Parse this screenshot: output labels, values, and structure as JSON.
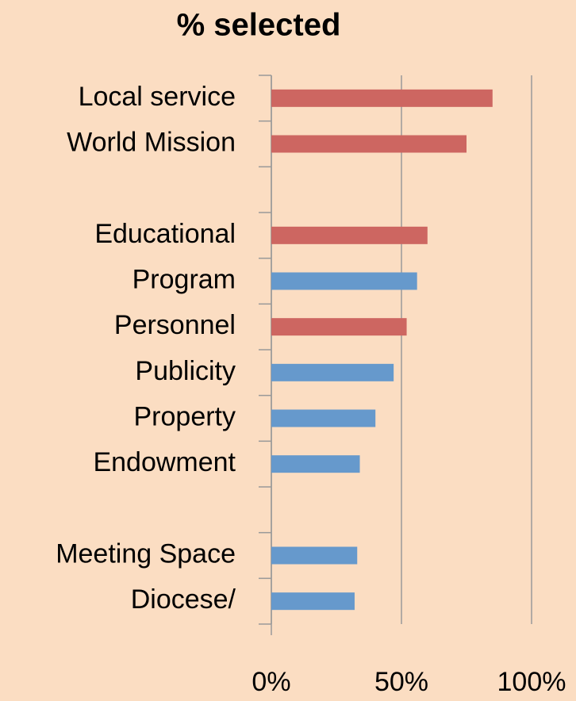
{
  "chart_data": {
    "type": "bar",
    "orientation": "horizontal",
    "title": "% selected",
    "categories": [
      "Local service",
      "World Mission",
      null,
      "Educational",
      "Program",
      "Personnel",
      "Publicity",
      "Property",
      "Endowment",
      null,
      "Meeting Space",
      "Diocese/"
    ],
    "values": [
      85,
      75,
      null,
      60,
      56,
      52,
      47,
      40,
      34,
      null,
      33,
      32
    ],
    "colors": [
      "#cd6661",
      "#cd6661",
      null,
      "#cd6661",
      "#6699cc",
      "#cd6661",
      "#6699cc",
      "#6699cc",
      "#6699cc",
      null,
      "#6699cc",
      "#6699cc"
    ],
    "xlim": [
      0,
      100
    ],
    "xticks": [
      {
        "value": 0,
        "label": "0%"
      },
      {
        "value": 50,
        "label": "50%"
      },
      {
        "value": 100,
        "label": "100%"
      }
    ],
    "grid": true
  }
}
